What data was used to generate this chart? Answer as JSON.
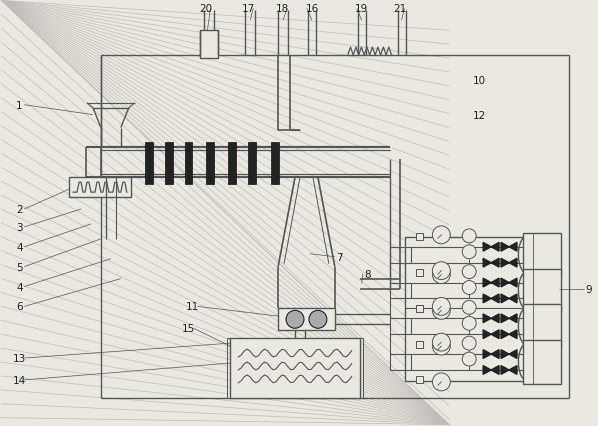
{
  "bg": "#ebe8e2",
  "lc": "#555555",
  "dc": "#222222",
  "fig_w": 5.98,
  "fig_h": 4.27,
  "dpi": 100,
  "hatch_lc": "#c0bdb8"
}
